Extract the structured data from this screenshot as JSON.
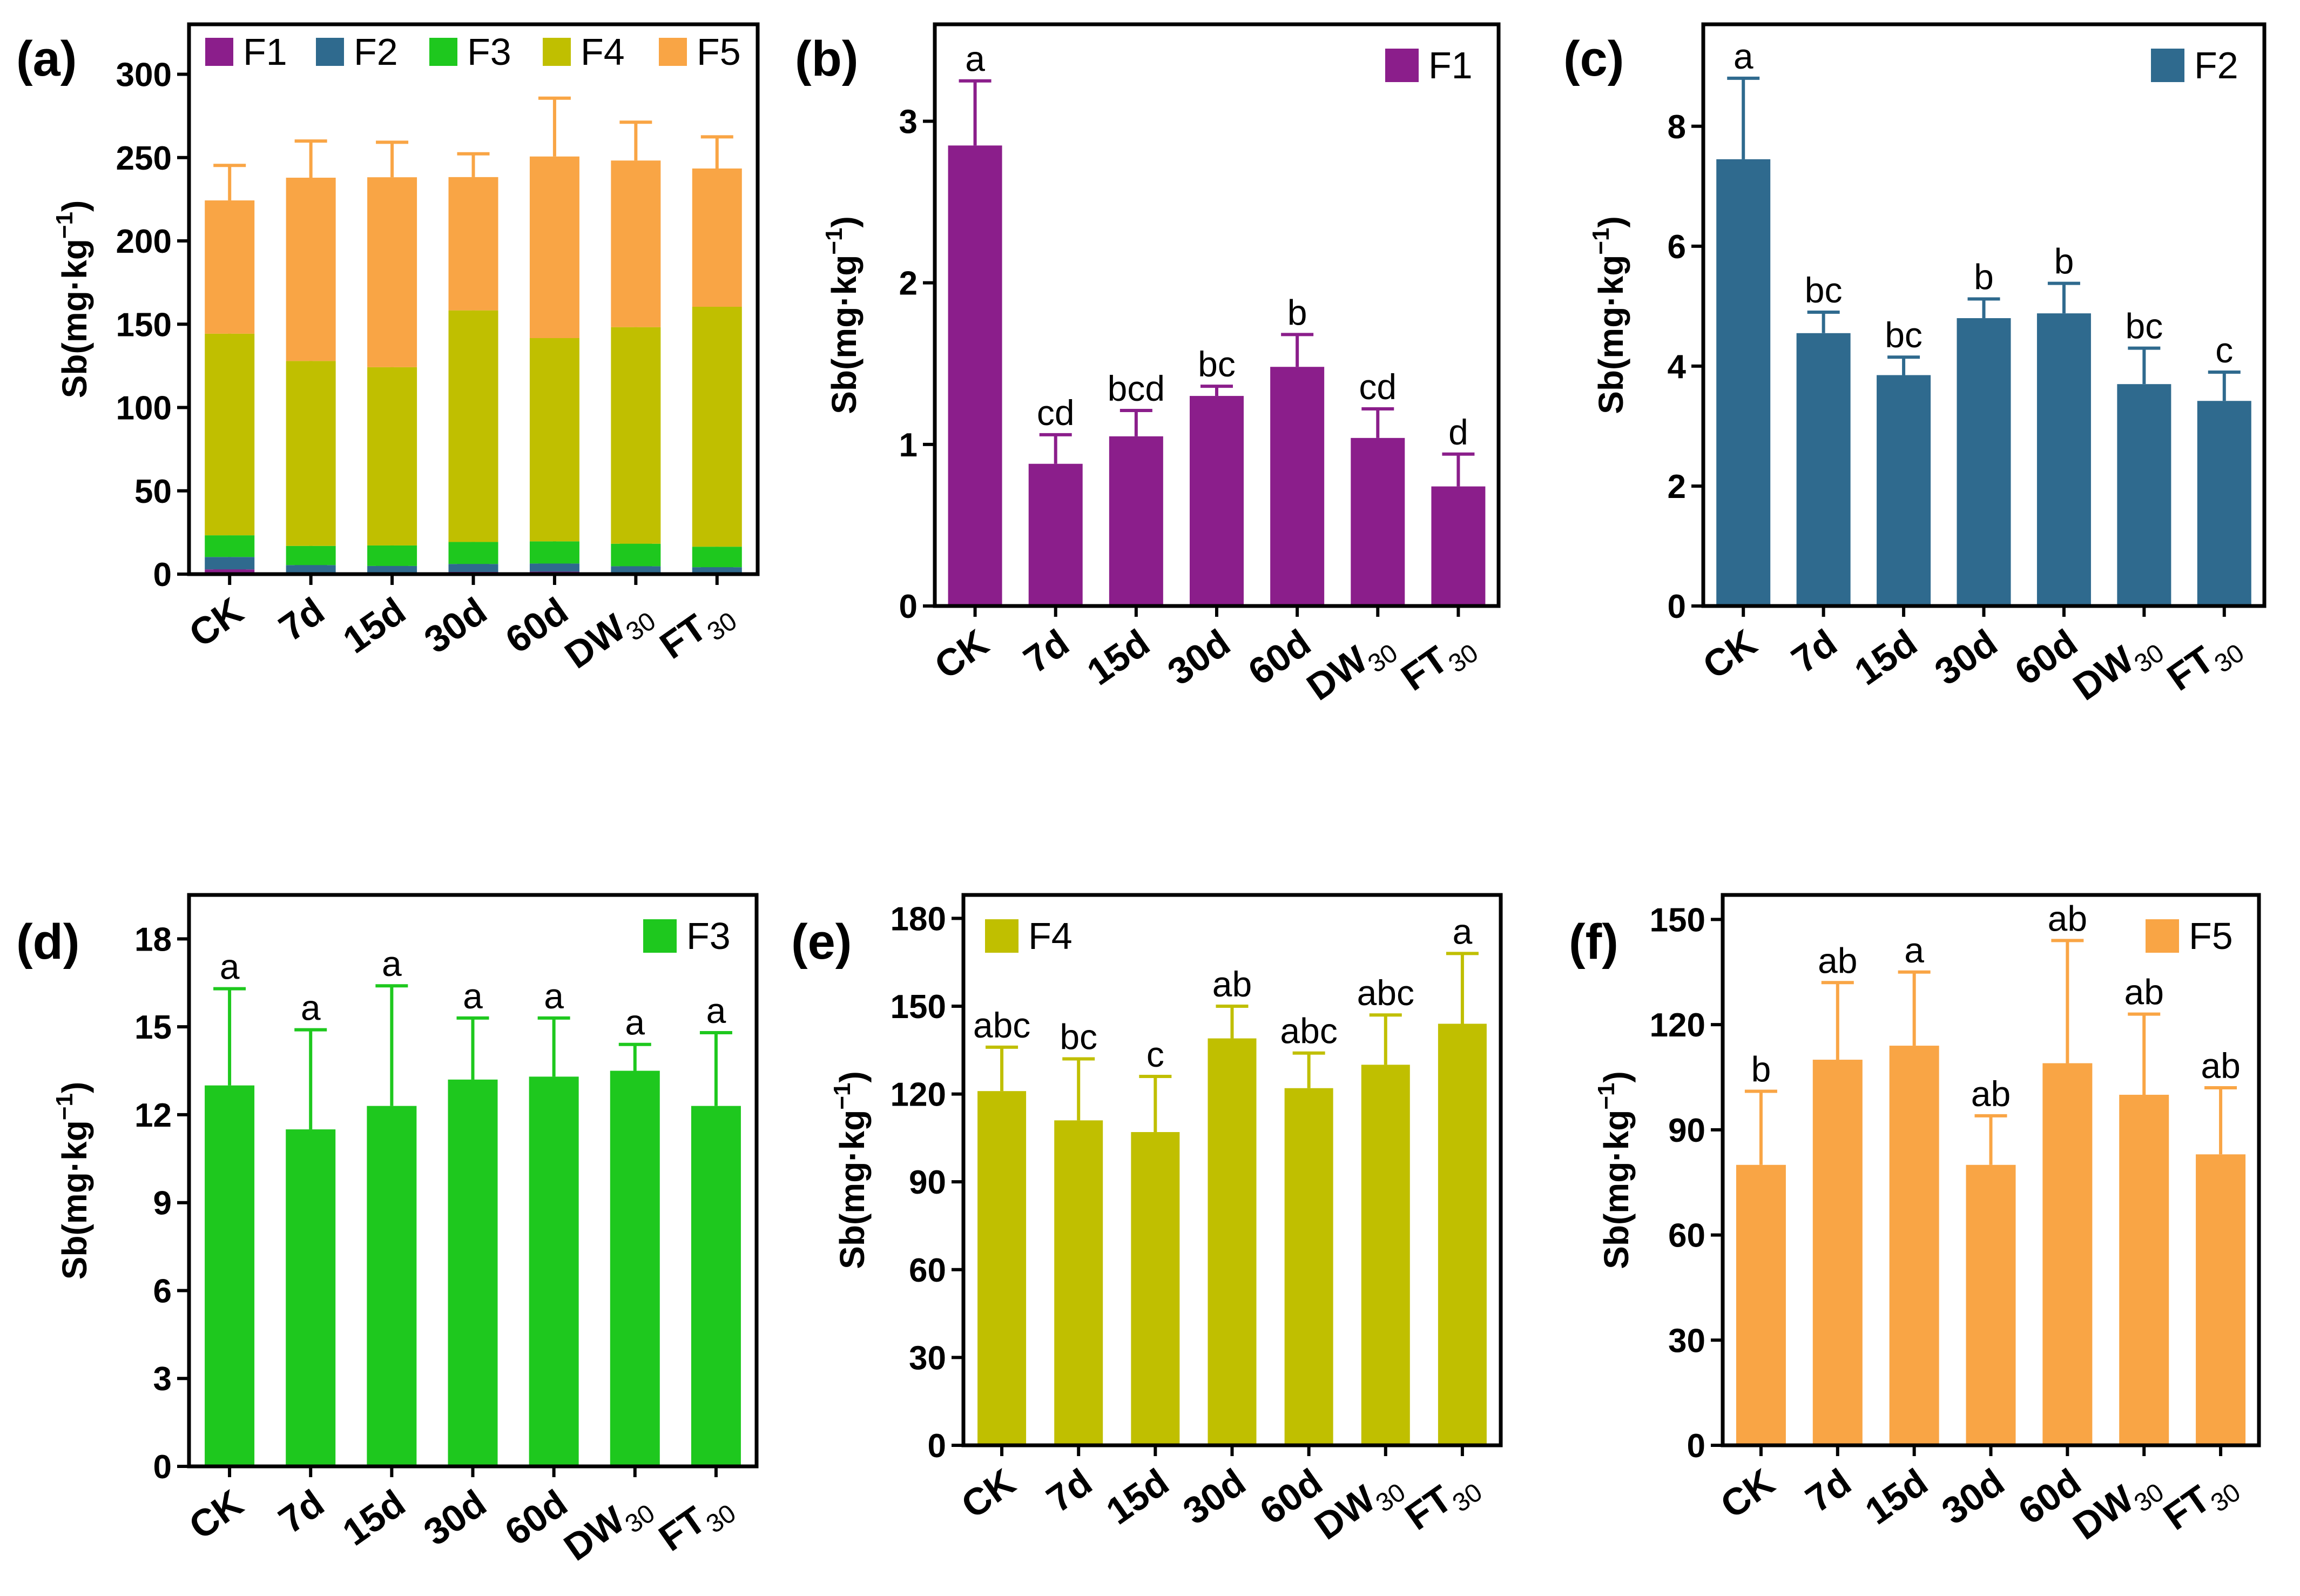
{
  "figure": {
    "categories": [
      "CK",
      "7d",
      "15d",
      "30d",
      "60d",
      "DW",
      "FT"
    ],
    "category_subscripts": [
      "",
      "",
      "",
      "",
      "",
      "30",
      "30"
    ],
    "y_label_prefix": "Sb(mg·kg",
    "y_label_sup": "−1",
    "y_label_suffix": ")"
  },
  "colors": {
    "F1": "#8b1e8b",
    "F2": "#2f6a8e",
    "F3": "#1ec81e",
    "F4": "#c0bf00",
    "F5": "#f9a545"
  },
  "chart_data": [
    {
      "panel": "(a)",
      "type": "bar",
      "stacked": true,
      "categories": [
        "CK",
        "7d",
        "15d",
        "30d",
        "60d",
        "DW30",
        "FT30"
      ],
      "ylim": [
        0,
        330
      ],
      "yticks": [
        0,
        50,
        100,
        150,
        200,
        250,
        300
      ],
      "ylabel": "Sb(mg·kg−1)",
      "legend": [
        "F1",
        "F2",
        "F3",
        "F4",
        "F5"
      ],
      "legend_position": "top",
      "series": [
        {
          "name": "F1",
          "values": [
            2.85,
            0.88,
            1.05,
            1.3,
            1.48,
            1.04,
            0.74
          ],
          "err": [
            0.4,
            0.18,
            0.16,
            0.06,
            0.2,
            0.18,
            0.2
          ]
        },
        {
          "name": "F2",
          "values": [
            7.45,
            4.55,
            3.85,
            4.8,
            4.88,
            3.7,
            3.42
          ],
          "err": [
            1.35,
            0.35,
            0.3,
            0.32,
            0.5,
            0.6,
            0.48
          ]
        },
        {
          "name": "F3",
          "values": [
            13.0,
            11.5,
            12.3,
            13.2,
            13.3,
            13.5,
            12.3
          ],
          "err": [
            3.3,
            3.4,
            4.1,
            2.1,
            2.0,
            0.9,
            2.5
          ]
        },
        {
          "name": "F4",
          "values": [
            121,
            111,
            107,
            139,
            122,
            130,
            144
          ],
          "err": [
            15,
            21,
            19,
            11,
            12,
            17,
            24
          ]
        },
        {
          "name": "F5",
          "values": [
            80,
            110,
            114,
            80,
            109,
            100,
            83
          ],
          "err": [
            21,
            22,
            21,
            14,
            35,
            23,
            19
          ]
        }
      ]
    },
    {
      "panel": "(b)",
      "type": "bar",
      "categories": [
        "CK",
        "7d",
        "15d",
        "30d",
        "60d",
        "DW30",
        "FT30"
      ],
      "ylim": [
        0,
        3.6
      ],
      "yticks": [
        0,
        1,
        2,
        3
      ],
      "ylabel": "Sb(mg·kg−1)",
      "legend": [
        "F1"
      ],
      "legend_position": "top-right",
      "series": [
        {
          "name": "F1",
          "values": [
            2.85,
            0.88,
            1.05,
            1.3,
            1.48,
            1.04,
            0.74
          ],
          "err": [
            0.4,
            0.18,
            0.16,
            0.06,
            0.2,
            0.18,
            0.2
          ]
        }
      ],
      "annotations": [
        "a",
        "cd",
        "bcd",
        "bc",
        "b",
        "cd",
        "d"
      ]
    },
    {
      "panel": "(c)",
      "type": "bar",
      "categories": [
        "CK",
        "7d",
        "15d",
        "30d",
        "60d",
        "DW30",
        "FT30"
      ],
      "ylim": [
        0,
        9.7
      ],
      "yticks": [
        0,
        2,
        4,
        6,
        8
      ],
      "ylabel": "Sb(mg·kg−1)",
      "legend": [
        "F2"
      ],
      "legend_position": "top-right",
      "series": [
        {
          "name": "F2",
          "values": [
            7.45,
            4.55,
            3.85,
            4.8,
            4.88,
            3.7,
            3.42
          ],
          "err": [
            1.35,
            0.35,
            0.3,
            0.32,
            0.5,
            0.6,
            0.48
          ]
        }
      ],
      "annotations": [
        "a",
        "bc",
        "bc",
        "b",
        "b",
        "bc",
        "c"
      ]
    },
    {
      "panel": "(d)",
      "type": "bar",
      "categories": [
        "CK",
        "7d",
        "15d",
        "30d",
        "60d",
        "DW30",
        "FT30"
      ],
      "ylim": [
        0,
        19.5
      ],
      "yticks": [
        0,
        3,
        6,
        9,
        12,
        15,
        18
      ],
      "ylabel": "Sb(mg·kg−1)",
      "legend": [
        "F3"
      ],
      "legend_position": "top-right",
      "series": [
        {
          "name": "F3",
          "values": [
            13.0,
            11.5,
            12.3,
            13.2,
            13.3,
            13.5,
            12.3
          ],
          "err": [
            3.3,
            3.4,
            4.1,
            2.1,
            2.0,
            0.9,
            2.5
          ]
        }
      ],
      "annotations": [
        "a",
        "a",
        "a",
        "a",
        "a",
        "a",
        "a"
      ]
    },
    {
      "panel": "(e)",
      "type": "bar",
      "categories": [
        "CK",
        "7d",
        "15d",
        "30d",
        "60d",
        "DW30",
        "FT30"
      ],
      "ylim": [
        0,
        188
      ],
      "yticks": [
        0,
        30,
        60,
        90,
        120,
        150,
        180
      ],
      "ylabel": "Sb(mg·kg−1)",
      "legend": [
        "F4"
      ],
      "legend_position": "top-left",
      "series": [
        {
          "name": "F4",
          "values": [
            121,
            111,
            107,
            139,
            122,
            130,
            144
          ],
          "err": [
            15,
            21,
            19,
            11,
            12,
            17,
            24
          ]
        }
      ],
      "annotations": [
        "abc",
        "bc",
        "c",
        "ab",
        "abc",
        "abc",
        "a"
      ]
    },
    {
      "panel": "(f)",
      "type": "bar",
      "categories": [
        "CK",
        "7d",
        "15d",
        "30d",
        "60d",
        "DW30",
        "FT30"
      ],
      "ylim": [
        0,
        157
      ],
      "yticks": [
        0,
        30,
        60,
        90,
        120,
        150
      ],
      "ylabel": "Sb(mg·kg−1)",
      "legend": [
        "F5"
      ],
      "legend_position": "top-right",
      "series": [
        {
          "name": "F5",
          "values": [
            80,
            110,
            114,
            80,
            109,
            100,
            83
          ],
          "err": [
            21,
            22,
            21,
            14,
            35,
            23,
            19
          ]
        }
      ],
      "annotations": [
        "b",
        "ab",
        "a",
        "ab",
        "ab",
        "ab",
        "ab"
      ]
    }
  ]
}
